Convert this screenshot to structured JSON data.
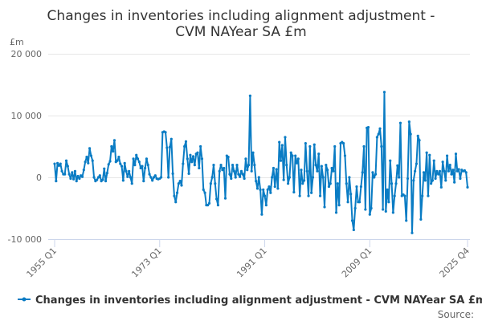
{
  "chart_data": {
    "type": "line",
    "title_lines": [
      "Changes in inventories including alignment adjustment -",
      "CVM NAYear SA £m"
    ],
    "ylabel": "£m",
    "xlabel": "",
    "ylim": [
      -10000,
      20000
    ],
    "yticks": [
      -10000,
      0,
      10000,
      20000
    ],
    "ytick_labels": [
      "-10 000",
      "0",
      "10 000",
      "20 000"
    ],
    "x_start": {
      "year": 1955,
      "quarter": 1
    },
    "x_end": {
      "year": 2025,
      "quarter": 4
    },
    "xtick_labels": [
      "1955 Q1",
      "1973 Q1",
      "1991 Q1",
      "2009 Q1",
      "2025 Q4"
    ],
    "grid": true,
    "legend_position": "bottom",
    "color": "#0a7cc4",
    "series": [
      {
        "name": "Changes in inventories including alignment adjustment - CVM NAYear SA £m",
        "values": [
          2200,
          -600,
          2300,
          1900,
          2200,
          1000,
          500,
          500,
          2700,
          1800,
          500,
          -200,
          800,
          -300,
          1000,
          -600,
          200,
          -200,
          300,
          100,
          1200,
          2500,
          3300,
          2300,
          4700,
          3500,
          2700,
          0,
          -600,
          -400,
          0,
          300,
          -600,
          -400,
          1400,
          -600,
          700,
          2100,
          2600,
          5000,
          4200,
          6000,
          2500,
          2700,
          3300,
          2200,
          1800,
          -500,
          2300,
          1000,
          100,
          1000,
          0,
          -1000,
          3000,
          2000,
          3600,
          3000,
          2500,
          1500,
          1800,
          -600,
          1500,
          3000,
          2000,
          500,
          0,
          -500,
          0,
          300,
          -200,
          -300,
          -200,
          0,
          7300,
          7400,
          7300,
          4800,
          0,
          4900,
          6200,
          600,
          -3000,
          -4000,
          -2500,
          -1000,
          -600,
          -1300,
          2200,
          5000,
          5800,
          3000,
          600,
          3600,
          2500,
          3400,
          2000,
          3800,
          4000,
          1500,
          5000,
          3000,
          -2000,
          -2500,
          -4500,
          -4500,
          -4200,
          -1000,
          0,
          2000,
          -1000,
          -3500,
          -4500,
          1000,
          2000,
          1200,
          1500,
          -3400,
          3500,
          3300,
          500,
          -200,
          2000,
          1000,
          0,
          2000,
          500,
          100,
          1000,
          500,
          -200,
          3000,
          1200,
          2000,
          13200,
          1000,
          4000,
          2000,
          -600,
          -1800,
          0,
          -2000,
          -6000,
          -2000,
          -3000,
          -4500,
          -2000,
          -1500,
          -2500,
          0,
          1500,
          -1500,
          1300,
          -1800,
          5700,
          2700,
          5200,
          -400,
          6500,
          2000,
          -1000,
          0,
          4000,
          3500,
          -2400,
          3500,
          2300,
          3000,
          -3000,
          1200,
          -1000,
          -500,
          5500,
          1000,
          -3000,
          5000,
          -2500,
          0,
          5300,
          2000,
          1000,
          3800,
          -3000,
          1800,
          0,
          -4800,
          2000,
          1200,
          -1500,
          -1000,
          1500,
          1000,
          5000,
          -5700,
          -1000,
          -4500,
          5500,
          5700,
          5500,
          3500,
          -1000,
          -4000,
          0,
          -2700,
          -7000,
          -8500,
          -5000,
          -1500,
          -4000,
          -4000,
          -1500,
          800,
          5000,
          -5200,
          8000,
          8100,
          -6000,
          -5000,
          800,
          0,
          500,
          6500,
          7000,
          7900,
          5000,
          -5200,
          13800,
          -5500,
          -2000,
          -4000,
          2700,
          -1000,
          -5700,
          -3000,
          -1000,
          1900,
          0,
          8800,
          -3000,
          -2800,
          -3000,
          -7000,
          -200,
          9000,
          7000,
          -9000,
          -500,
          1000,
          2200,
          6700,
          6000,
          -6800,
          -3000,
          800,
          -500,
          4000,
          -3000,
          3600,
          -1000,
          -500,
          2700,
          -200,
          1000,
          500,
          1000,
          -1600,
          2500,
          1000,
          -500,
          3500,
          1000,
          2000,
          500,
          1200,
          -800,
          3800,
          1000,
          1300,
          -200,
          1200,
          1000,
          1100,
          800,
          -1600
        ]
      }
    ],
    "credit": "Source:"
  }
}
